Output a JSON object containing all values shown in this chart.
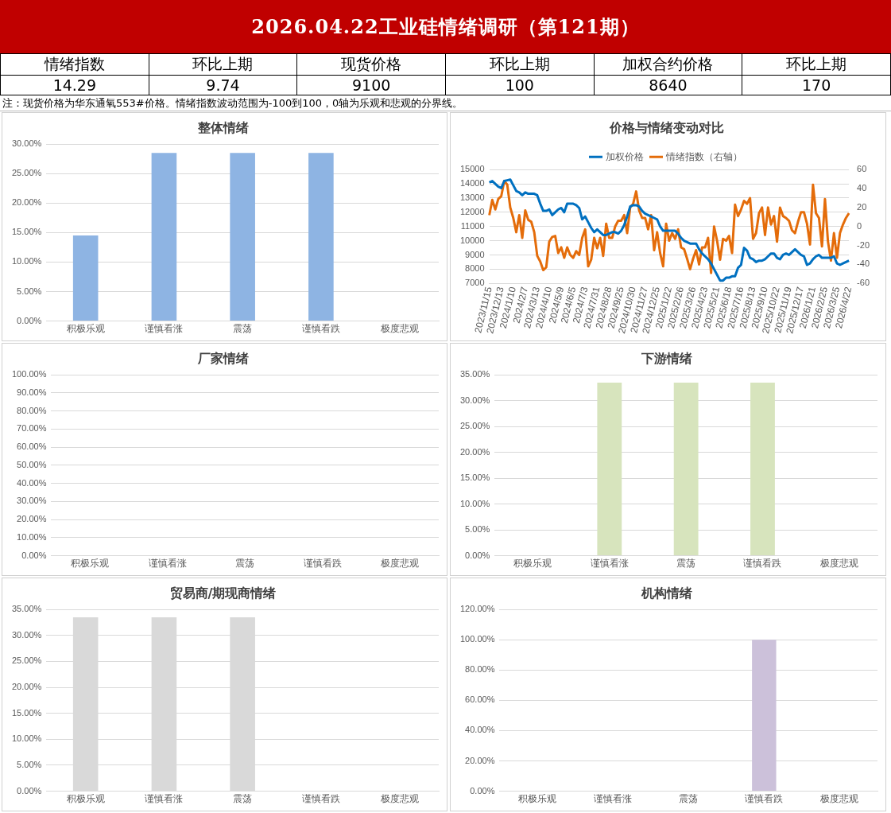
{
  "chart_data": [
    {
      "type": "other",
      "title": "2026.04.22工业硅情绪调研（第121期）",
      "categories": [
        "情绪指数",
        "环比上期",
        "现货价格",
        "环比上期",
        "加权合约价格",
        "环比上期"
      ],
      "values": [
        14.29,
        9.74,
        9100,
        100,
        8640,
        170
      ],
      "data_labels": true,
      "annotations": [
        "注：现货价格为华东通氧553#价格。情绪指数波动范围为-100到100，0轴为乐观和悲观的分界线。"
      ]
    },
    {
      "type": "bar",
      "title": "整体情绪",
      "categories": [
        "积极乐观",
        "谨慎看涨",
        "震荡",
        "谨慎看跌",
        "极度悲观"
      ],
      "values": [
        14.5,
        28.5,
        28.5,
        28.5,
        0
      ],
      "color": "#8eb4e3",
      "ylim": [
        0,
        30
      ],
      "yticks": [
        {
          "value": 0,
          "label": "0.00%"
        },
        {
          "value": 5,
          "label": "5.00%"
        },
        {
          "value": 10,
          "label": "10.00%"
        },
        {
          "value": 15,
          "label": "15.00%"
        },
        {
          "value": 20,
          "label": "20.00%"
        },
        {
          "value": 25,
          "label": "25.00%"
        },
        {
          "value": 30,
          "label": "30.00%"
        }
      ],
      "grid": "y"
    },
    {
      "type": "line",
      "title": "价格与情绪变动对比",
      "categories": [
        "2023/11/15",
        null,
        null,
        null,
        "2023/12/13",
        null,
        null,
        null,
        "2024/1/10",
        null,
        null,
        null,
        "2024/2/7",
        null,
        null,
        null,
        "2024/3/13",
        null,
        null,
        null,
        "2024/4/10",
        null,
        null,
        null,
        "2024/5/9",
        null,
        null,
        null,
        "2024/6/5",
        null,
        null,
        null,
        "2024/7/3",
        null,
        null,
        null,
        "2024/7/31",
        null,
        null,
        null,
        "2024/8/28",
        null,
        null,
        null,
        "2024/9/25",
        null,
        null,
        null,
        "2024/10/30",
        null,
        null,
        null,
        "2024/11/27",
        null,
        null,
        null,
        "2024/12/25",
        null,
        null,
        null,
        "2025/1/22",
        null,
        null,
        null,
        "2025/2/26",
        null,
        null,
        null,
        "2025/3/26",
        null,
        null,
        null,
        "2025/4/23",
        null,
        null,
        null,
        "2025/5/21",
        null,
        null,
        null,
        "2025/6/18",
        null,
        null,
        null,
        "2025/7/16",
        null,
        null,
        null,
        "2025/8/13",
        null,
        null,
        null,
        "2025/9/10",
        null,
        null,
        null,
        "2025/10/22",
        null,
        null,
        null,
        "2025/11/19",
        null,
        null,
        null,
        "2025/12/17",
        null,
        null,
        null,
        "2026/1/21",
        null,
        null,
        null,
        "2026/2/25",
        null,
        null,
        null,
        "2026/3/25",
        null,
        null,
        null,
        "2026/4/22"
      ],
      "series": [
        {
          "name": "加权价格",
          "color": "#0070c0",
          "values": [
            14100,
            14200,
            14000,
            13800,
            13700,
            14200,
            14250,
            14300,
            13900,
            13500,
            13400,
            13200,
            13400,
            13300,
            13300,
            13300,
            13200,
            12600,
            12100,
            12100,
            12200,
            11800,
            12000,
            12200,
            12300,
            12000,
            12600,
            12600,
            12600,
            12500,
            12300,
            11500,
            11700,
            11300,
            10900,
            10600,
            10800,
            10600,
            10400,
            10400,
            10500,
            10600,
            10600,
            10500,
            10700,
            11100,
            11700,
            12400,
            12500,
            12500,
            12400,
            12100,
            11900,
            11800,
            11700,
            11600,
            11500,
            11000,
            10700,
            10700,
            10700,
            10700,
            10700,
            10500,
            10200,
            10000,
            9900,
            9800,
            9800,
            9800,
            9400,
            9100,
            8900,
            8700,
            8400,
            8000,
            7600,
            7200,
            7200,
            7400,
            7400,
            7500,
            7500,
            8100,
            8300,
            9500,
            9300,
            8800,
            8700,
            8500,
            8600,
            8600,
            8700,
            8900,
            9100,
            9100,
            8800,
            8700,
            9000,
            9100,
            9000,
            9200,
            9400,
            9200,
            9000,
            8900,
            8300,
            8400,
            8700,
            8900,
            9000,
            8800,
            8800,
            8800,
            8800,
            8900,
            8400,
            8300,
            8400,
            8500,
            8600
          ]
        },
        {
          "name": "情绪指数（右轴）",
          "color": "#e46c0a",
          "axis": "y2",
          "values": [
            12,
            28,
            18,
            29,
            32,
            48,
            44,
            20,
            9,
            -6,
            12,
            -12,
            17,
            7,
            5,
            -6,
            -31,
            -37,
            -46,
            -43,
            -16,
            -11,
            -10,
            -28,
            -22,
            -33,
            -22,
            -30,
            -33,
            -26,
            -30,
            -12,
            -3,
            -42,
            -35,
            -12,
            -23,
            -12,
            -31,
            3,
            -12,
            -12,
            0,
            6,
            6,
            12,
            -7,
            20,
            24,
            37,
            17,
            9,
            9,
            -3,
            12,
            -25,
            -6,
            -28,
            -42,
            3,
            -15,
            -7,
            -13,
            -3,
            -22,
            -24,
            -34,
            -45,
            -34,
            -25,
            -40,
            -22,
            -22,
            -12,
            -49,
            0,
            -15,
            -35,
            -13,
            -15,
            -10,
            -28,
            23,
            11,
            18,
            27,
            24,
            30,
            -13,
            -7,
            14,
            20,
            -9,
            20,
            2,
            11,
            -16,
            20,
            11,
            9,
            6,
            -4,
            -7,
            5,
            15,
            15,
            3,
            -19,
            44,
            14,
            9,
            -21,
            29,
            -16,
            -36,
            -7,
            -33,
            -7,
            2,
            9,
            14
          ]
        }
      ],
      "ylim": [
        7000,
        15000
      ],
      "yticks": [
        7000,
        8000,
        9000,
        10000,
        11000,
        12000,
        13000,
        14000,
        15000
      ],
      "y2lim": [
        -60,
        60
      ],
      "y2ticks": [
        -60,
        -40,
        -20,
        0,
        20,
        40,
        60
      ],
      "grid": "y",
      "legend": "top"
    },
    {
      "type": "bar",
      "title": "厂家情绪",
      "categories": [
        "积极乐观",
        "谨慎看涨",
        "震荡",
        "谨慎看跌",
        "极度悲观"
      ],
      "values": [
        0,
        0,
        0,
        0,
        0
      ],
      "color": "#8eb4e3",
      "ylim": [
        0,
        100
      ],
      "yticks": [
        {
          "value": 0,
          "label": "0.00%"
        },
        {
          "value": 10,
          "label": "10.00%"
        },
        {
          "value": 20,
          "label": "20.00%"
        },
        {
          "value": 30,
          "label": "30.00%"
        },
        {
          "value": 40,
          "label": "40.00%"
        },
        {
          "value": 50,
          "label": "50.00%"
        },
        {
          "value": 60,
          "label": "60.00%"
        },
        {
          "value": 70,
          "label": "70.00%"
        },
        {
          "value": 80,
          "label": "80.00%"
        },
        {
          "value": 90,
          "label": "90.00%"
        },
        {
          "value": 100,
          "label": "100.00%"
        }
      ],
      "grid": "y"
    },
    {
      "type": "bar",
      "title": "下游情绪",
      "categories": [
        "积极乐观",
        "谨慎看涨",
        "震荡",
        "谨慎看跌",
        "极度悲观"
      ],
      "values": [
        0,
        33.5,
        33.5,
        33.5,
        0
      ],
      "color": "#d7e4bd",
      "ylim": [
        0,
        35
      ],
      "yticks": [
        {
          "value": 0,
          "label": "0.00%"
        },
        {
          "value": 5,
          "label": "5.00%"
        },
        {
          "value": 10,
          "label": "10.00%"
        },
        {
          "value": 15,
          "label": "15.00%"
        },
        {
          "value": 20,
          "label": "20.00%"
        },
        {
          "value": 25,
          "label": "25.00%"
        },
        {
          "value": 30,
          "label": "30.00%"
        },
        {
          "value": 35,
          "label": "35.00%"
        }
      ],
      "grid": "y"
    },
    {
      "type": "bar",
      "title": "贸易商/期现商情绪",
      "categories": [
        "积极乐观",
        "谨慎看涨",
        "震荡",
        "谨慎看跌",
        "极度悲观"
      ],
      "values": [
        33.5,
        33.5,
        33.5,
        0,
        0
      ],
      "color": "#d9d9d9",
      "ylim": [
        0,
        35
      ],
      "yticks": [
        {
          "value": 0,
          "label": "0.00%"
        },
        {
          "value": 5,
          "label": "5.00%"
        },
        {
          "value": 10,
          "label": "10.00%"
        },
        {
          "value": 15,
          "label": "15.00%"
        },
        {
          "value": 20,
          "label": "20.00%"
        },
        {
          "value": 25,
          "label": "25.00%"
        },
        {
          "value": 30,
          "label": "30.00%"
        },
        {
          "value": 35,
          "label": "35.00%"
        }
      ],
      "grid": "y"
    },
    {
      "type": "bar",
      "title": "机构情绪",
      "categories": [
        "积极乐观",
        "谨慎看涨",
        "震荡",
        "谨慎看跌",
        "极度悲观"
      ],
      "values": [
        0,
        0,
        0,
        100,
        0
      ],
      "color": "#ccc1da",
      "ylim": [
        0,
        120
      ],
      "yticks": [
        {
          "value": 0,
          "label": "0.00%"
        },
        {
          "value": 20,
          "label": "20.00%"
        },
        {
          "value": 40,
          "label": "40.00%"
        },
        {
          "value": 60,
          "label": "60.00%"
        },
        {
          "value": 80,
          "label": "80.00%"
        },
        {
          "value": 100,
          "label": "100.00%"
        },
        {
          "value": 120,
          "label": "120.00%"
        }
      ],
      "grid": "y"
    }
  ]
}
